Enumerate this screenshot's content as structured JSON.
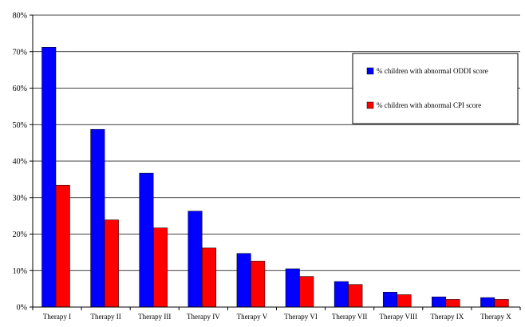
{
  "chart_data": {
    "type": "bar",
    "categories": [
      "Therapy I",
      "Therapy II",
      "Therapy III",
      "Therapy IV",
      "Therapy V",
      "Therapy VI",
      "Therapy VII",
      "Therapy VIII",
      "Therapy IX",
      "Therapy X"
    ],
    "series": [
      {
        "name": "% children with abnormal ODDI score",
        "color": "#0000ff",
        "values": [
          71.2,
          48.7,
          36.7,
          26.3,
          14.7,
          10.5,
          7.0,
          4.1,
          2.8,
          2.6
        ]
      },
      {
        "name": "% children with abnormal CPI score",
        "color": "#ff0000",
        "values": [
          33.4,
          23.9,
          21.7,
          16.2,
          12.6,
          8.4,
          6.2,
          3.4,
          2.1,
          2.1
        ]
      }
    ],
    "ylim": [
      0,
      80
    ],
    "yticks": [
      "0%",
      "10%",
      "20%",
      "30%",
      "40%",
      "50%",
      "60%",
      "70%",
      "80%"
    ],
    "grid": true,
    "legend": "top-right",
    "title": "",
    "xlabel": "",
    "ylabel": ""
  }
}
